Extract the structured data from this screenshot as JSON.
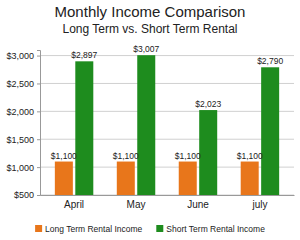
{
  "chart_data": {
    "type": "bar",
    "title": "Monthly Income Comparison",
    "subtitle": "Long Term vs. Short Term Rental",
    "categories": [
      "April",
      "May",
      "June",
      "july"
    ],
    "series": [
      {
        "name": "Long Term Rental Income",
        "color": "#e8761b",
        "values": [
          1100,
          1100,
          1100,
          1100
        ],
        "value_labels": [
          "$1,100",
          "$1,100",
          "$1,100",
          "$1,100"
        ]
      },
      {
        "name": "Short Term Rental Income",
        "color": "#1e8c1e",
        "values": [
          2897,
          3007,
          2023,
          2790
        ],
        "value_labels": [
          "$2,897",
          "$3,007",
          "$2,023",
          "$2,790"
        ]
      }
    ],
    "ylim": [
      500,
      3100
    ],
    "yticks": [
      {
        "value": 500,
        "label": "$500"
      },
      {
        "value": 1000,
        "label": "$1,000"
      },
      {
        "value": 1500,
        "label": "$1,500"
      },
      {
        "value": 2000,
        "label": "$2,000"
      },
      {
        "value": 2500,
        "label": "$2,500"
      },
      {
        "value": 3000,
        "label": "$3,000"
      }
    ],
    "grid": true,
    "data_labels": true,
    "legend": "bottom"
  }
}
